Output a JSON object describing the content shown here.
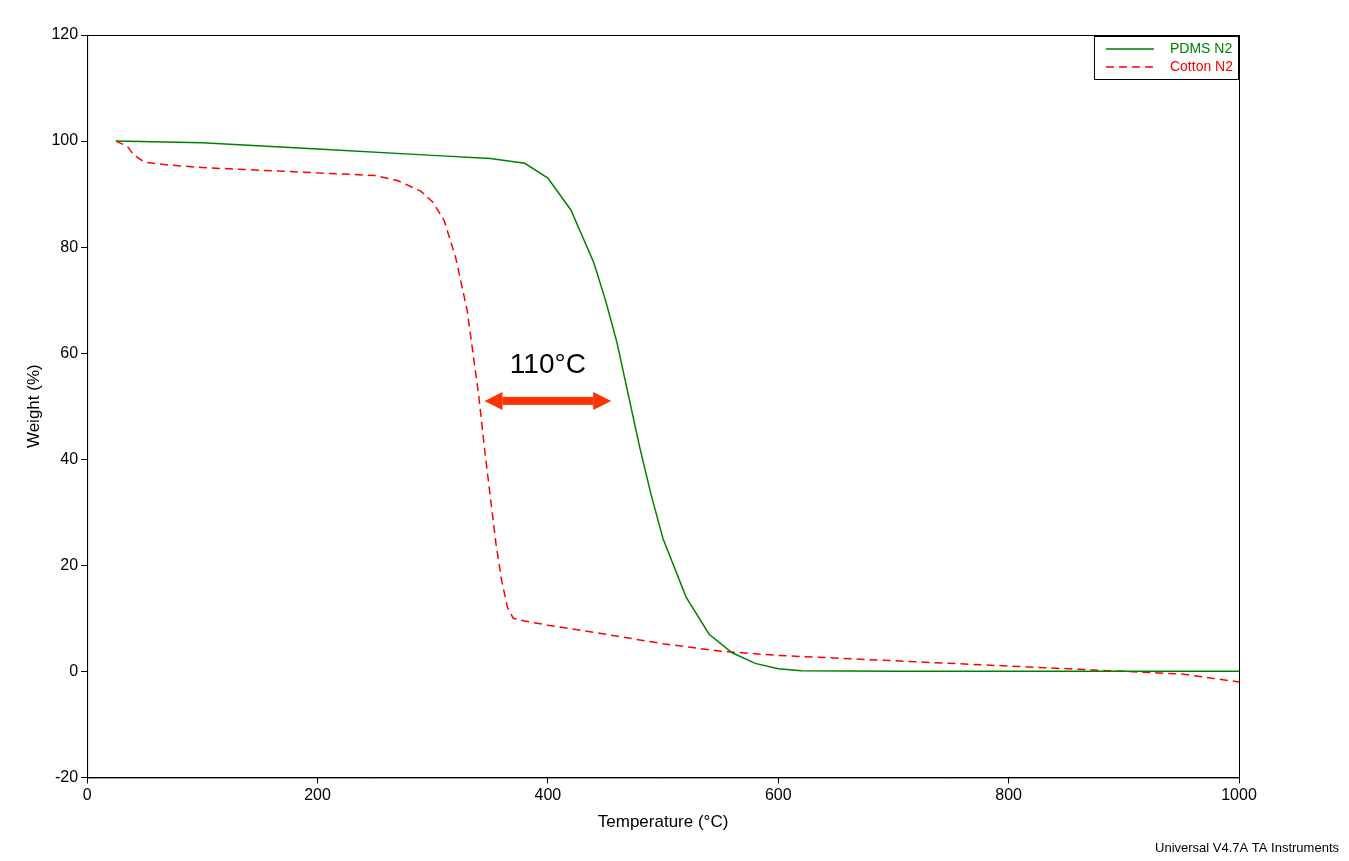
{
  "chart_data": {
    "type": "line",
    "x_label": "Temperature (°C)",
    "y_label": "Weight (%)",
    "xlim": [
      0,
      1000
    ],
    "xticks": [
      0,
      200,
      400,
      600,
      800,
      1000
    ],
    "ylim": [
      -20,
      120
    ],
    "yticks": [
      -20,
      0,
      20,
      40,
      60,
      80,
      100,
      120
    ],
    "grid": false,
    "legend": "upper right",
    "series": [
      {
        "name": "PDMS N2",
        "color": "#008000",
        "line_style": "solid",
        "x": [
          25,
          100,
          200,
          300,
          350,
          380,
          400,
          420,
          440,
          450,
          460,
          470,
          480,
          490,
          500,
          520,
          540,
          560,
          580,
          600,
          620,
          700,
          800,
          900,
          1000
        ],
        "values": [
          100,
          99.7,
          98.5,
          97.3,
          96.7,
          95.8,
          93,
          87,
          77,
          70,
          62,
          52,
          42,
          33,
          25,
          14,
          7,
          3.5,
          1.5,
          0.5,
          0.1,
          0,
          0,
          0,
          0
        ]
      },
      {
        "name": "Cotton N2",
        "color": "#ff0000",
        "line_style": "dashed",
        "x": [
          25,
          35,
          40,
          50,
          70,
          100,
          150,
          200,
          250,
          270,
          290,
          300,
          310,
          320,
          330,
          335,
          340,
          345,
          350,
          355,
          360,
          365,
          370,
          380,
          400,
          450,
          500,
          550,
          600,
          700,
          800,
          900,
          950,
          1000
        ],
        "values": [
          100,
          99,
          97.5,
          96,
          95.5,
          95,
          94.5,
          94,
          93.5,
          92.5,
          90.5,
          88.5,
          85,
          78,
          68,
          60,
          52,
          42,
          33,
          24,
          17,
          12,
          10,
          9.5,
          8.7,
          7,
          5.2,
          3.8,
          3,
          2,
          1,
          0,
          -0.5,
          -2
        ]
      }
    ],
    "annotations": [
      {
        "text": "110°C",
        "x": [
          345,
          455
        ],
        "y": 51
      }
    ],
    "caption": "Universal V4.7A TA Instruments"
  }
}
